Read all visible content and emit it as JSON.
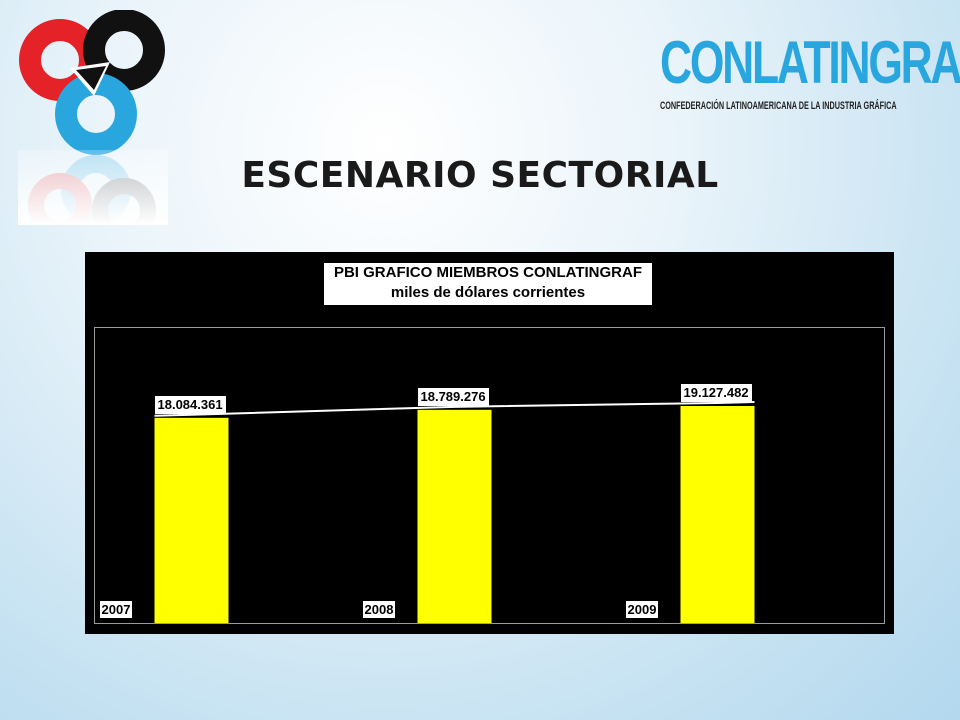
{
  "slide": {
    "title": "ESCENARIO SECTORIAL"
  },
  "brand": {
    "name": "CONLATINGRAF",
    "subtitle": "CONFEDERACIÓN LATINOAMERICANA DE LA INDUSTRIA GRÁFICA",
    "color": "#2aa6df"
  },
  "colors": {
    "logo_red": "#e52228",
    "logo_black": "#111111",
    "logo_blue": "#2aa6df",
    "bar": "#ffff00",
    "chart_background": "#000000"
  },
  "chart_data": {
    "type": "bar",
    "title": "PBI GRAFICO MIEMBROS CONLATINGRAF",
    "subtitle": "miles de dólares corrientes",
    "categories": [
      "2007",
      "2008",
      "2009"
    ],
    "series": [
      {
        "values": [
          18084361,
          18789276,
          19127482
        ],
        "color": "#ffff00"
      }
    ],
    "data_labels": [
      "18.084.361",
      "18.789.276",
      "19.127.482"
    ],
    "trend_line": true,
    "grid": false,
    "legend": "none",
    "ylim": [
      0,
      26000000
    ]
  }
}
